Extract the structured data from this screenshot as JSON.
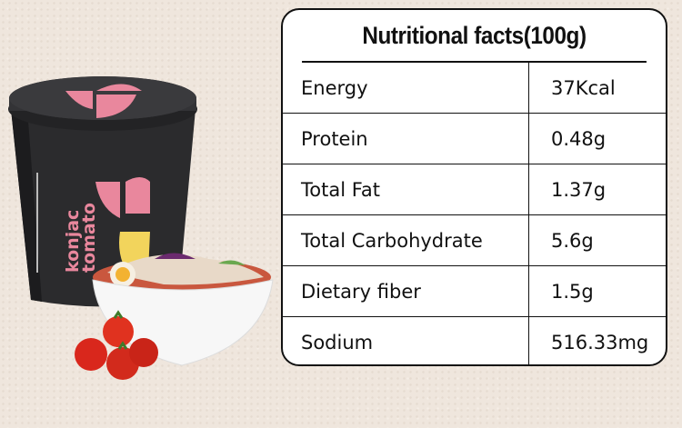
{
  "table": {
    "title": "Nutritional facts(100g)",
    "rows": [
      [
        "Energy",
        "37Kcal"
      ],
      [
        "Protein",
        "0.48g"
      ],
      [
        "Total Fat",
        "1.37g"
      ],
      [
        "Total Carbohydrate",
        "5.6g"
      ],
      [
        "Dietary fiber",
        "1.5g"
      ],
      [
        "Sodium",
        "516.33mg"
      ]
    ]
  },
  "product": {
    "name_lines": [
      "konjac",
      "tomato"
    ]
  }
}
